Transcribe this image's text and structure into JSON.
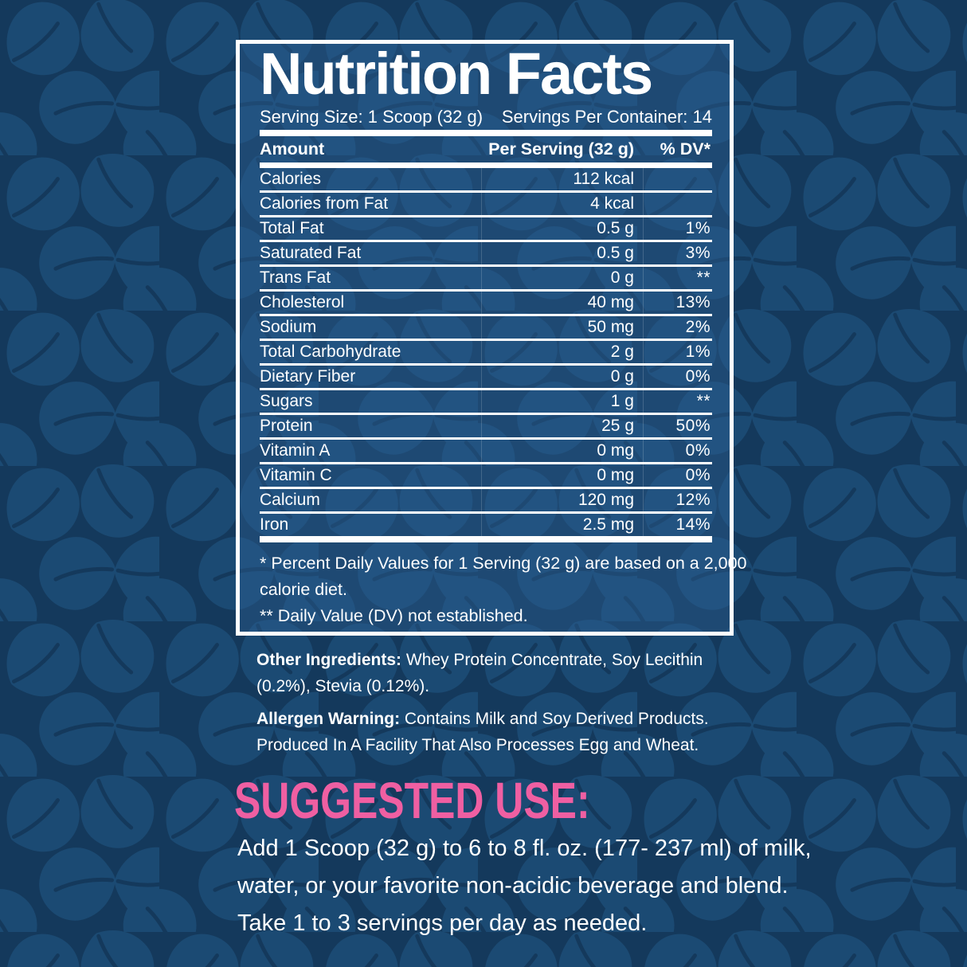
{
  "colors": {
    "background": "#14395c",
    "leaf_pattern": "#1b4a73",
    "panel_fill": "#1d4a72",
    "text": "#ffffff",
    "accent_pink": "#ef5fa2"
  },
  "panel": {
    "title": "Nutrition Facts",
    "serving_size": "Serving Size: 1 Scoop (32 g)",
    "servings_per_container": "Servings Per Container: 14",
    "columns": {
      "amount": "Amount",
      "per_serving": "Per Serving (32 g)",
      "dv": "% DV*"
    },
    "rows": [
      {
        "label": "Calories",
        "value": "112 kcal",
        "dv": ""
      },
      {
        "label": "Calories from Fat",
        "value": "4 kcal",
        "dv": ""
      },
      {
        "label": "Total Fat",
        "value": "0.5 g",
        "dv": "1%"
      },
      {
        "label": "Saturated Fat",
        "value": "0.5 g",
        "dv": "3%"
      },
      {
        "label": "Trans Fat",
        "value": "0 g",
        "dv": "**"
      },
      {
        "label": "Cholesterol",
        "value": "40 mg",
        "dv": "13%"
      },
      {
        "label": "Sodium",
        "value": "50 mg",
        "dv": "2%"
      },
      {
        "label": "Total Carbohydrate",
        "value": "2 g",
        "dv": "1%"
      },
      {
        "label": "Dietary Fiber",
        "value": "0 g",
        "dv": "0%"
      },
      {
        "label": "Sugars",
        "value": "1 g",
        "dv": "**"
      },
      {
        "label": "Protein",
        "value": "25 g",
        "dv": "50%"
      },
      {
        "label": "Vitamin A",
        "value": "0 mg",
        "dv": "0%"
      },
      {
        "label": "Vitamin C",
        "value": "0 mg",
        "dv": "0%"
      },
      {
        "label": "Calcium",
        "value": "120 mg",
        "dv": "12%"
      },
      {
        "label": "Iron",
        "value": "2.5 mg",
        "dv": "14%"
      }
    ],
    "footnote_lines": [
      "* Percent Daily Values for 1 Serving (32 g) are based on a 2,000",
      "calorie diet.",
      "** Daily Value (DV) not established."
    ]
  },
  "sections": {
    "other_ingredients": {
      "label": "Other Ingredients:",
      "line1": "Whey Protein Concentrate, Soy Lecithin",
      "line2": "(0.2%), Stevia (0.12%)."
    },
    "allergen": {
      "label": "Allergen Warning:",
      "line1": "Contains Milk and Soy Derived Products.",
      "line2": "Produced In A Facility That Also Processes Egg and Wheat."
    },
    "suggested_use": {
      "title": "SUGGESTED USE:",
      "lines": [
        "Add 1 Scoop (32 g) to 6 to 8 fl. oz. (177- 237 ml) of milk,",
        "water, or your favorite non-acidic beverage and blend.",
        "Take 1 to 3 servings per day as needed."
      ]
    }
  }
}
